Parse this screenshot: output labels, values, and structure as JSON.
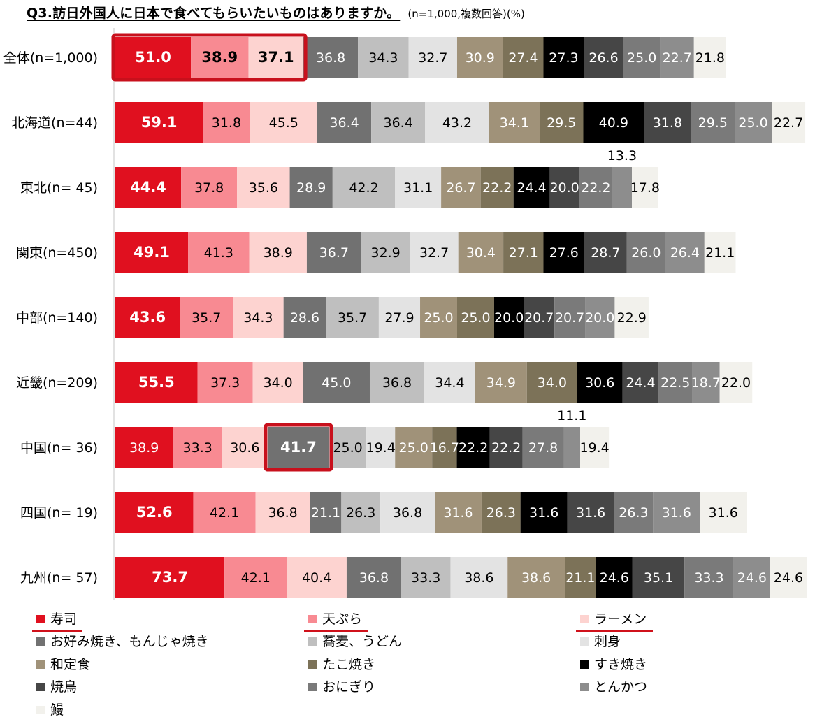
{
  "title": "Q3.訪日外国人に日本で食べてもらいたいものはありますか。",
  "title_note": "(n=1,000,複数回答)(%)",
  "colors": [
    "#e0101f",
    "#f88a92",
    "#fdd3d0",
    "#717171",
    "#bfbfbf",
    "#e3e3e3",
    "#a09279",
    "#7c7258",
    "#000000",
    "#464646",
    "#7a7a7a",
    "#8d8d8d",
    "#f2f1ec"
  ],
  "highlight_color": "#c8101c",
  "chart_data": {
    "type": "bar",
    "orientation": "horizontal",
    "stacked": true,
    "unit": "%",
    "categories": [
      "全体(n=1,000)",
      "北海道(n=44)",
      "東北(n= 45)",
      "関東(n=450)",
      "中部(n=140)",
      "近畿(n=209)",
      "中国(n= 36)",
      "四国(n= 19)",
      "九州(n= 57)"
    ],
    "series": [
      {
        "name": "寿司",
        "values": [
          51.0,
          59.1,
          44.4,
          49.1,
          43.6,
          55.5,
          38.9,
          52.6,
          73.7
        ]
      },
      {
        "name": "天ぷら",
        "values": [
          38.9,
          31.8,
          37.8,
          41.3,
          35.7,
          37.3,
          33.3,
          42.1,
          42.1
        ]
      },
      {
        "name": "ラーメン",
        "values": [
          37.1,
          45.5,
          35.6,
          38.9,
          34.3,
          34.0,
          30.6,
          36.8,
          40.4
        ]
      },
      {
        "name": "お好み焼き、もんじゃ焼き",
        "values": [
          36.8,
          36.4,
          28.9,
          36.7,
          28.6,
          45.0,
          41.7,
          21.1,
          36.8
        ]
      },
      {
        "name": "蕎麦、うどん",
        "values": [
          34.3,
          36.4,
          42.2,
          32.9,
          35.7,
          36.8,
          25.0,
          26.3,
          33.3
        ]
      },
      {
        "name": "刺身",
        "values": [
          32.7,
          43.2,
          31.1,
          32.7,
          27.9,
          34.4,
          19.4,
          36.8,
          38.6
        ]
      },
      {
        "name": "和定食",
        "values": [
          30.9,
          34.1,
          26.7,
          30.4,
          25.0,
          34.9,
          25.0,
          31.6,
          38.6
        ]
      },
      {
        "name": "たこ焼き",
        "values": [
          27.4,
          29.5,
          22.2,
          27.1,
          25.0,
          34.0,
          16.7,
          26.3,
          21.1
        ]
      },
      {
        "name": "すき焼き",
        "values": [
          27.3,
          40.9,
          24.4,
          27.6,
          20.0,
          30.6,
          22.2,
          31.6,
          24.6
        ]
      },
      {
        "name": "焼鳥",
        "values": [
          26.6,
          31.8,
          20.0,
          28.7,
          20.7,
          24.4,
          22.2,
          31.6,
          35.1
        ]
      },
      {
        "name": "おにぎり",
        "values": [
          25.0,
          29.5,
          22.2,
          26.0,
          20.7,
          22.5,
          27.8,
          26.3,
          33.3
        ]
      },
      {
        "name": "とんかつ",
        "values": [
          22.7,
          25.0,
          13.3,
          26.4,
          20.0,
          18.7,
          11.1,
          31.6,
          24.6
        ]
      },
      {
        "name": "鰻",
        "values": [
          21.8,
          22.7,
          17.8,
          21.1,
          22.9,
          22.0,
          19.4,
          31.6,
          24.6
        ]
      }
    ],
    "value_labels": [
      [
        "51.0",
        "38.9",
        "37.1",
        "36.8",
        "34.3",
        "32.7",
        "30.9",
        "27.4",
        "27.3",
        "26.6",
        "25.0",
        "22.7",
        "21.8"
      ],
      [
        "59.1",
        "31.8",
        "45.5",
        "36.4",
        "36.4",
        "43.2",
        "34.1",
        "29.5",
        "40.9",
        "31.8",
        "29.5",
        "25.0",
        "22.7"
      ],
      [
        "44.4",
        "37.8",
        "35.6",
        "28.9",
        "42.2",
        "31.1",
        "26.7",
        "22.2",
        "24.4",
        "20.0",
        "22.2",
        "13.3",
        "17.8"
      ],
      [
        "49.1",
        "41.3",
        "38.9",
        "36.7",
        "32.9",
        "32.7",
        "30.4",
        "27.1",
        "27.6",
        "28.7",
        "26.0",
        "26.4",
        "21.1"
      ],
      [
        "43.6",
        "35.7",
        "34.3",
        "28.6",
        "35.7",
        "27.9",
        "25.0",
        "25.0",
        "20.0",
        "20.7",
        "20.7",
        "20.0",
        "22.9"
      ],
      [
        "55.5",
        "37.3",
        "34.0",
        "45.0",
        "36.8",
        "34.4",
        "34.9",
        "34.0",
        "30.6",
        "24.4",
        "22.5",
        "18.7",
        "22.0"
      ],
      [
        "38.9",
        "33.3",
        "30.6",
        "41.7",
        "25.0",
        "19.4",
        "25.0",
        "16.7",
        "22.2",
        "22.2",
        "27.8",
        "11.1",
        "19.4"
      ],
      [
        "52.6",
        "42.1",
        "36.8",
        "21.1",
        "26.3",
        "36.8",
        "31.6",
        "26.3",
        "31.6",
        "31.6",
        "26.3",
        "31.6",
        "31.6"
      ],
      [
        "73.7",
        "42.1",
        "40.4",
        "36.8",
        "33.3",
        "38.6",
        "38.6",
        "21.1",
        "24.6",
        "35.1",
        "33.3",
        "24.6",
        "24.6"
      ]
    ],
    "highlighted_segments": [
      {
        "row": "全体(n=1,000)",
        "series": [
          "寿司",
          "天ぷら",
          "ラーメン"
        ]
      },
      {
        "row": "中国(n= 36)",
        "series": [
          "お好み焼き、もんじゃ焼き"
        ]
      }
    ],
    "underlined_legend_entries": [
      "寿司",
      "天ぷら",
      "ラーメン"
    ],
    "legend_position": "bottom",
    "grid": false
  }
}
